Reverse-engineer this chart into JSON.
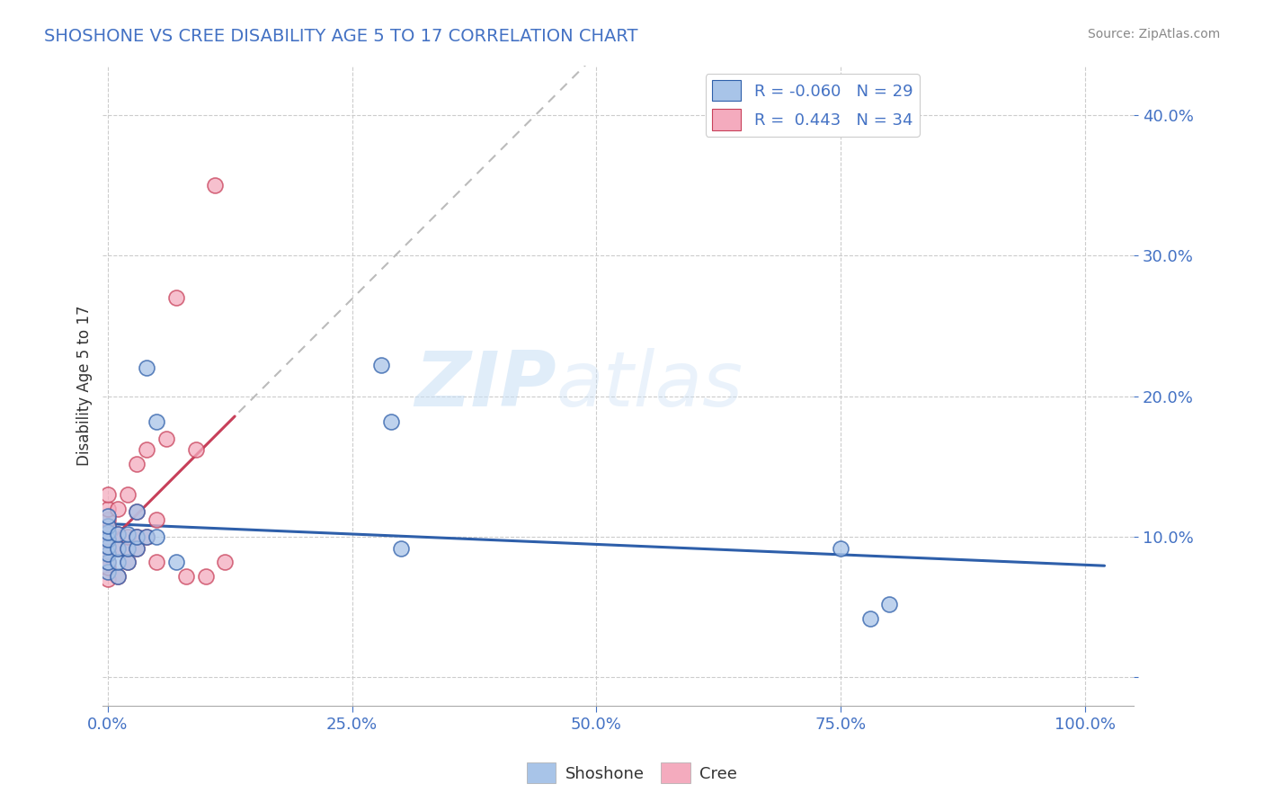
{
  "title": "SHOSHONE VS CREE DISABILITY AGE 5 TO 17 CORRELATION CHART",
  "source_text": "Source: ZipAtlas.com",
  "xlabel": "",
  "ylabel": "Disability Age 5 to 17",
  "legend_labels": [
    "Shoshone",
    "Cree"
  ],
  "legend_r": [
    -0.06,
    0.443
  ],
  "legend_n": [
    29,
    34
  ],
  "shoshone_color": "#A8C4E8",
  "cree_color": "#F4ABBE",
  "shoshone_line_color": "#2E5FAA",
  "cree_line_color": "#C8405A",
  "cree_extended_color": "#CCCCCC",
  "background_color": "#ffffff",
  "watermark_zip": "ZIP",
  "watermark_atlas": "atlas",
  "xlim": [
    -0.005,
    1.05
  ],
  "ylim": [
    -0.02,
    0.435
  ],
  "shoshone_x": [
    0.0,
    0.0,
    0.0,
    0.0,
    0.0,
    0.0,
    0.0,
    0.0,
    0.01,
    0.01,
    0.01,
    0.01,
    0.02,
    0.02,
    0.02,
    0.03,
    0.03,
    0.03,
    0.04,
    0.04,
    0.05,
    0.05,
    0.07,
    0.28,
    0.29,
    0.3,
    0.75,
    0.78,
    0.8
  ],
  "shoshone_y": [
    0.075,
    0.082,
    0.088,
    0.093,
    0.098,
    0.103,
    0.108,
    0.115,
    0.072,
    0.082,
    0.092,
    0.102,
    0.082,
    0.092,
    0.102,
    0.092,
    0.1,
    0.118,
    0.1,
    0.22,
    0.1,
    0.182,
    0.082,
    0.222,
    0.182,
    0.092,
    0.092,
    0.042,
    0.052
  ],
  "cree_x": [
    0.0,
    0.0,
    0.0,
    0.0,
    0.0,
    0.0,
    0.0,
    0.0,
    0.0,
    0.0,
    0.0,
    0.01,
    0.01,
    0.01,
    0.01,
    0.02,
    0.02,
    0.02,
    0.02,
    0.03,
    0.03,
    0.03,
    0.03,
    0.04,
    0.04,
    0.05,
    0.05,
    0.06,
    0.07,
    0.08,
    0.09,
    0.1,
    0.11,
    0.12
  ],
  "cree_y": [
    0.07,
    0.078,
    0.082,
    0.09,
    0.093,
    0.098,
    0.1,
    0.108,
    0.112,
    0.12,
    0.13,
    0.072,
    0.092,
    0.102,
    0.12,
    0.082,
    0.092,
    0.1,
    0.13,
    0.092,
    0.1,
    0.118,
    0.152,
    0.1,
    0.162,
    0.082,
    0.112,
    0.17,
    0.27,
    0.072,
    0.162,
    0.072,
    0.35,
    0.082
  ],
  "yticks": [
    0.0,
    0.1,
    0.2,
    0.3,
    0.4
  ],
  "ytick_labels": [
    "",
    "10.0%",
    "20.0%",
    "30.0%",
    "40.0%"
  ],
  "xticks": [
    0.0,
    0.25,
    0.5,
    0.75,
    1.0
  ],
  "xtick_labels": [
    "0.0%",
    "25.0%",
    "50.0%",
    "75.0%",
    "100.0%"
  ]
}
